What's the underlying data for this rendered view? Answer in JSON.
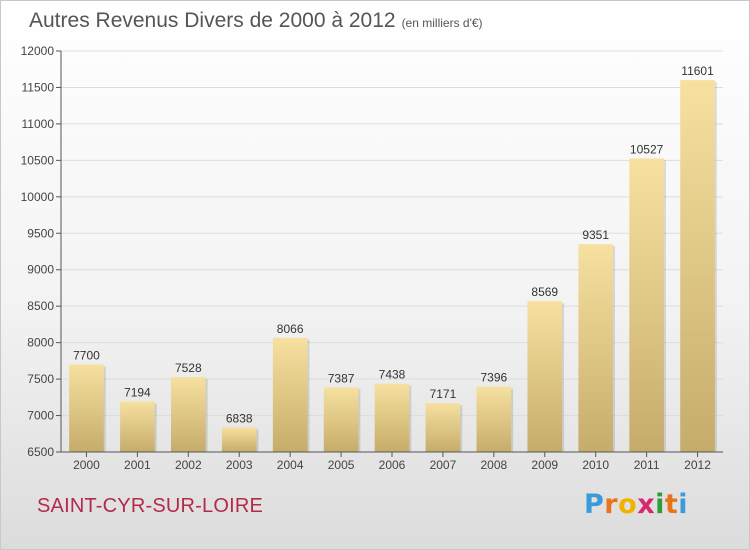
{
  "title": "Autres Revenus Divers de 2000 à 2012",
  "unit": "(en milliers d'€)",
  "commune": "SAINT-CYR-SUR-LOIRE",
  "logo": {
    "letters": [
      "P",
      "r",
      "o",
      "x",
      "i",
      "t",
      "i"
    ],
    "colors": [
      "#3b9ad9",
      "#e8731a",
      "#f0b400",
      "#d6286e",
      "#2f9c3a",
      "#e8731a",
      "#3b9ad9"
    ]
  },
  "colors": {
    "bar_light": "#f7e1a0",
    "bar_dark": "#c6ac6a",
    "grid": "#dddddd",
    "axis": "#555555"
  },
  "chart_data": {
    "type": "bar",
    "categories": [
      "2000",
      "2001",
      "2002",
      "2003",
      "2004",
      "2005",
      "2006",
      "2007",
      "2008",
      "2009",
      "2010",
      "2011",
      "2012"
    ],
    "values": [
      7700,
      7194,
      7528,
      6838,
      8066,
      7387,
      7438,
      7171,
      7396,
      8569,
      9351,
      10527,
      11601
    ],
    "ylim": [
      6500,
      12000
    ],
    "yticks": [
      6500,
      7000,
      7500,
      8000,
      8500,
      9000,
      9500,
      10000,
      10500,
      11000,
      11500,
      12000
    ],
    "grid": true,
    "data_labels": true
  }
}
